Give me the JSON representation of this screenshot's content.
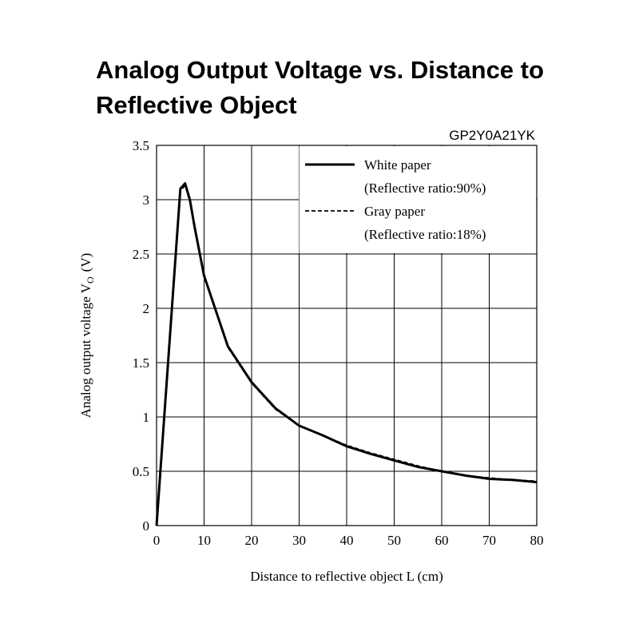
{
  "chart_data": {
    "type": "line",
    "title_line1": "Analog Output Voltage vs. Distance to",
    "title_line2": "Reflective Object",
    "subtitle": "GP2Y0A21YK",
    "xlabel": "Distance to reflective object L (cm)",
    "ylabel_main": "Analog output voltage V",
    "ylabel_sub": "O",
    "ylabel_unit": "(V)",
    "xlim": [
      0,
      80
    ],
    "ylim": [
      0,
      3.5
    ],
    "x_ticks": [
      "0",
      "10",
      "20",
      "30",
      "40",
      "50",
      "60",
      "70",
      "80"
    ],
    "y_ticks": [
      "0",
      "0.5",
      "1",
      "1.5",
      "2",
      "2.5",
      "3",
      "3.5"
    ],
    "grid": true,
    "legend_position": "top-right",
    "legend": [
      {
        "line1": "White paper",
        "line2": "(Reflective ratio:90%)",
        "style": "solid"
      },
      {
        "line1": "Gray paper",
        "line2": "(Reflective ratio:18%)",
        "style": "dashed"
      }
    ],
    "series": [
      {
        "name": "White paper",
        "color": "#000000",
        "x": [
          0,
          5,
          6,
          7,
          8,
          10,
          15,
          20,
          25,
          30,
          35,
          40,
          45,
          50,
          55,
          60,
          65,
          70,
          75,
          80
        ],
        "y": [
          0,
          3.1,
          3.15,
          3.0,
          2.75,
          2.3,
          1.65,
          1.32,
          1.08,
          0.92,
          0.83,
          0.73,
          0.66,
          0.6,
          0.54,
          0.5,
          0.46,
          0.43,
          0.42,
          0.4
        ]
      },
      {
        "name": "Gray paper",
        "color": "#000000",
        "x": [
          0,
          5,
          6,
          7,
          8,
          10,
          15,
          20,
          25,
          30,
          35,
          40,
          45,
          50,
          55,
          60,
          65,
          70,
          75,
          80
        ],
        "y": [
          0,
          3.08,
          3.13,
          2.98,
          2.74,
          2.29,
          1.64,
          1.31,
          1.07,
          0.92,
          0.83,
          0.74,
          0.67,
          0.61,
          0.55,
          0.5,
          0.46,
          0.44,
          0.42,
          0.41
        ]
      }
    ]
  }
}
